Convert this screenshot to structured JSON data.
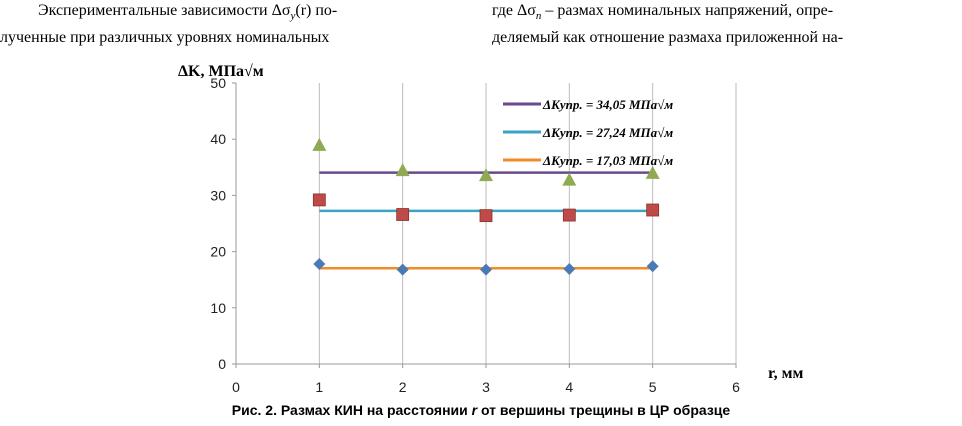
{
  "text": {
    "left_line1_pre": "Экспериментальные зависимости Δσ",
    "left_line1_sub": "y",
    "left_line1_post": "(r)  по-",
    "left_line2": "лученные при различных уровнях номинальных",
    "right_line1_pre": "где  Δσ",
    "right_line1_sub": "n",
    "right_line1_post": "  – размах номинальных напряжений, опре-",
    "right_line2": "деляемый как отношение размаха приложенной на-"
  },
  "caption": {
    "before": "Рис. 2. Размах КИН на расстоянии ",
    "italic": "r",
    "after": " от вершины трещины в ЦР образце"
  },
  "chart_data": {
    "type": "scatter",
    "ylabel": "ΔK, МПа√м",
    "xlabel": "r, мм",
    "xlim": [
      0,
      6
    ],
    "ylim": [
      0,
      50
    ],
    "xticks": [
      "0",
      "1",
      "2",
      "3",
      "4",
      "5",
      "6"
    ],
    "yticks": [
      "0",
      "10",
      "20",
      "30",
      "40",
      "50"
    ],
    "grid": "vertical",
    "legend_position": "top-right",
    "lines": [
      {
        "name": "ΔKупр. = 34,05 МПа√м",
        "value": 34.05,
        "color": "#6a4a8c",
        "x_from": 1,
        "x_to": 5
      },
      {
        "name": "ΔKупр. = 27,24 МПа√м",
        "value": 27.24,
        "color": "#3ba3c4",
        "x_from": 1,
        "x_to": 5
      },
      {
        "name": "ΔKупр. = 17,03 МПа√м",
        "value": 17.03,
        "color": "#f28c28",
        "x_from": 1,
        "x_to": 5
      }
    ],
    "points": [
      {
        "marker": "triangle",
        "color": "#8faa52",
        "x": [
          1,
          2,
          3,
          4,
          5
        ],
        "y": [
          39.0,
          34.5,
          33.6,
          32.8,
          34.0
        ]
      },
      {
        "marker": "square",
        "color": "#be4b48",
        "x": [
          1,
          2,
          3,
          4,
          5
        ],
        "y": [
          29.2,
          26.6,
          26.4,
          26.5,
          27.4
        ]
      },
      {
        "marker": "diamond",
        "color": "#4a7ab5",
        "x": [
          1,
          2,
          3,
          4,
          5
        ],
        "y": [
          17.8,
          16.8,
          16.8,
          16.9,
          17.4
        ]
      }
    ]
  }
}
